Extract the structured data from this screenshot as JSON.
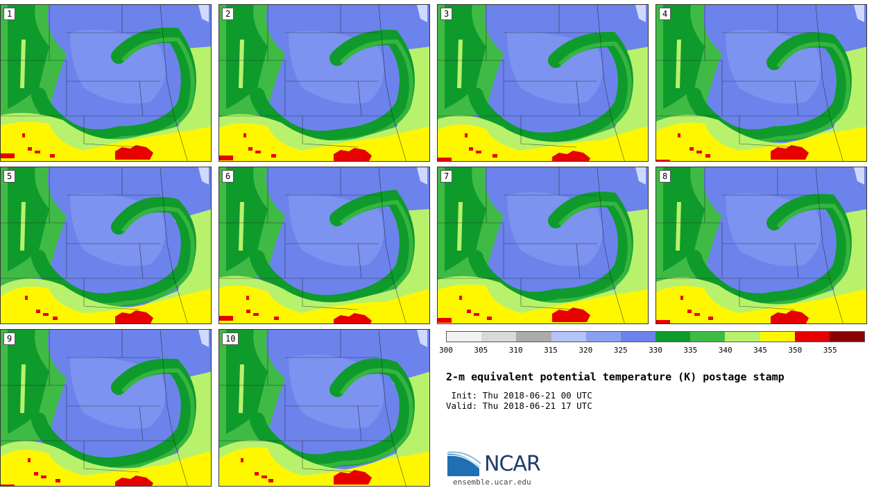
{
  "panels": [
    {
      "label": "1"
    },
    {
      "label": "2"
    },
    {
      "label": "3"
    },
    {
      "label": "4"
    },
    {
      "label": "5"
    },
    {
      "label": "6"
    },
    {
      "label": "7"
    },
    {
      "label": "8"
    },
    {
      "label": "9"
    },
    {
      "label": "10"
    }
  ],
  "colorbar": {
    "colors": [
      "#f2f2f2",
      "#d9d9d9",
      "#ababab",
      "#b4c4f8",
      "#8aa1f2",
      "#6c83ec",
      "#0f9a2c",
      "#3fbb45",
      "#b8f26c",
      "#fff700",
      "#e60000",
      "#8b0000"
    ],
    "ticks": [
      "300",
      "305",
      "310",
      "315",
      "320",
      "325",
      "330",
      "335",
      "340",
      "345",
      "350",
      "355"
    ]
  },
  "title": "2-m equivalent potential temperature (K) postage stamp",
  "init": " Init: Thu 2018-06-21 00 UTC",
  "valid": "Valid: Thu 2018-06-21 17 UTC",
  "logo": {
    "text": "NCAR",
    "url_text": "ensemble.ucar.edu"
  }
}
